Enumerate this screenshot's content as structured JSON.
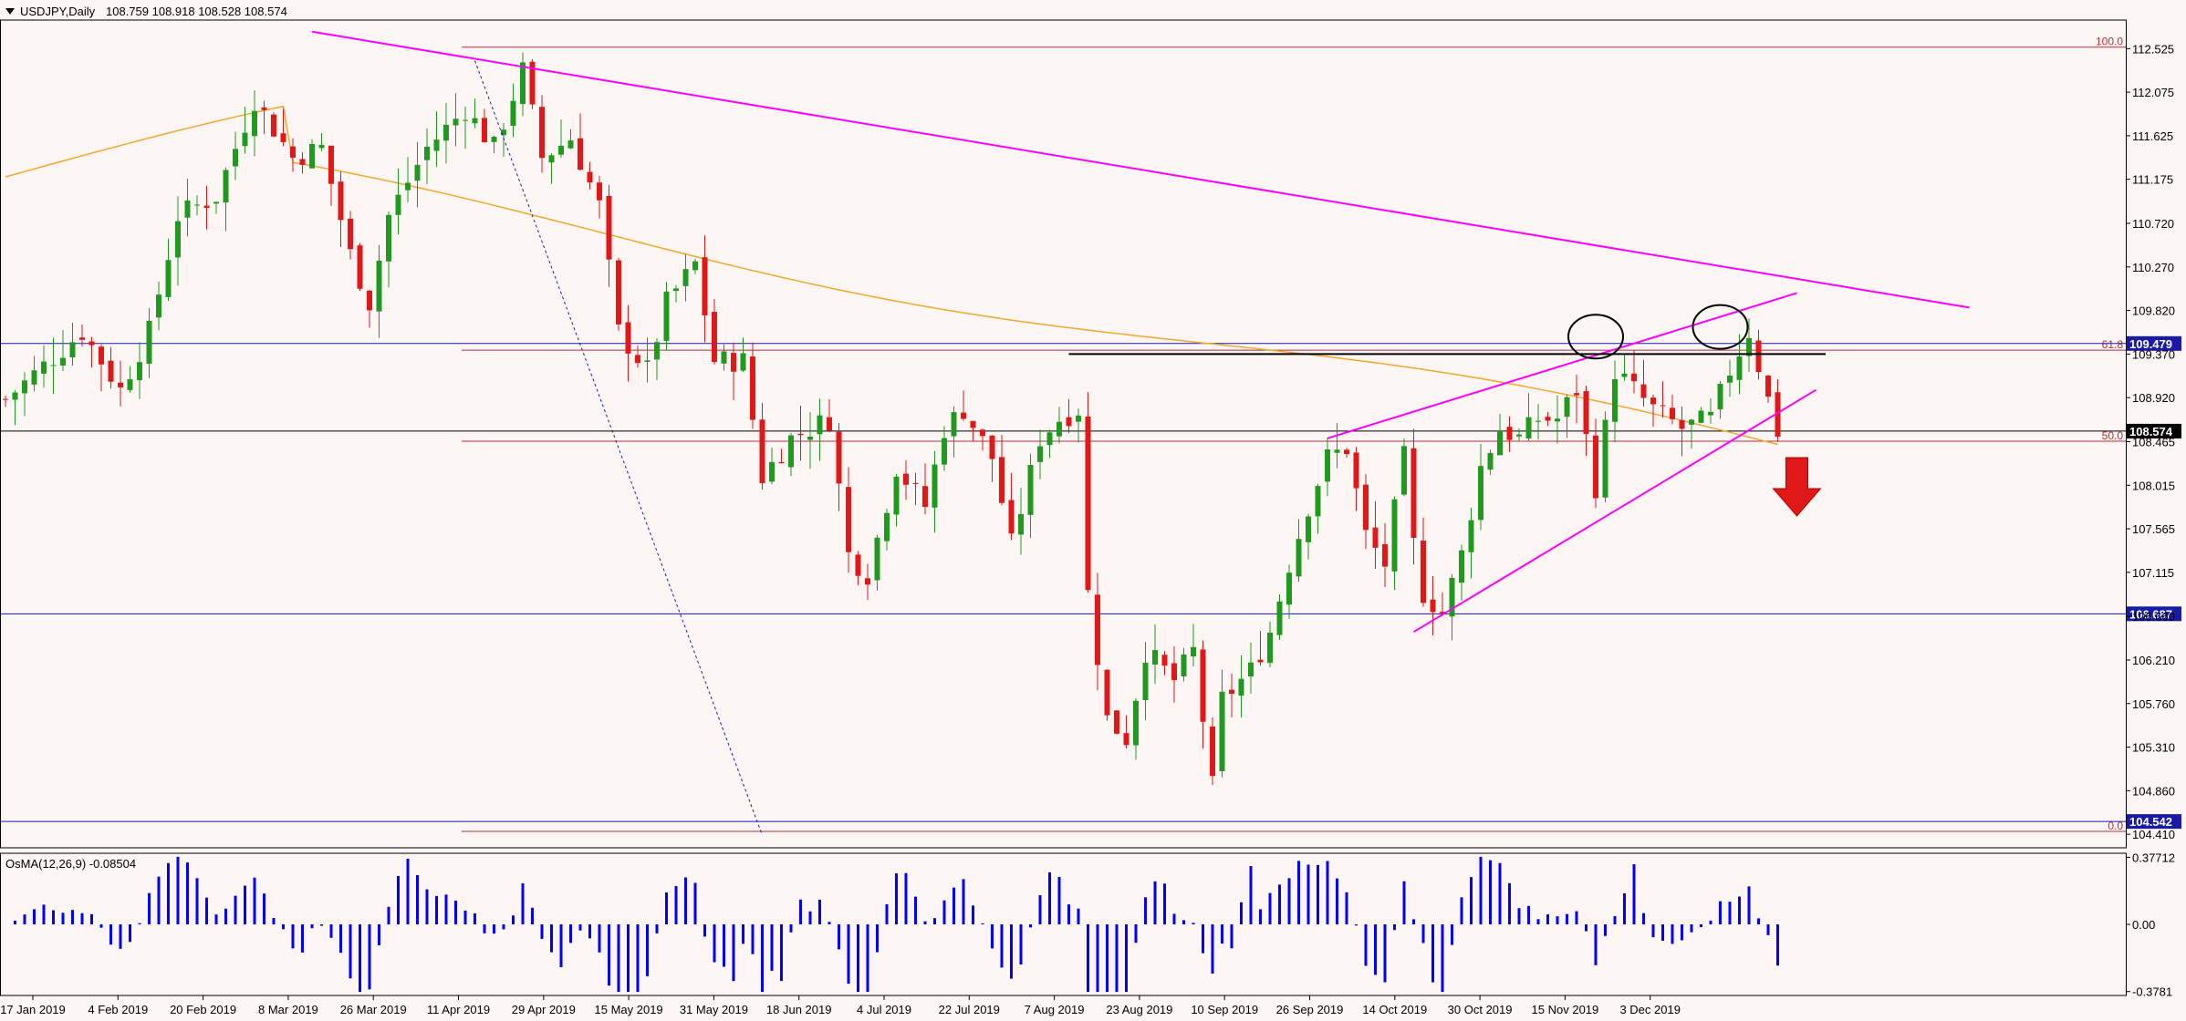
{
  "header": {
    "symbol": "USDJPY,Daily",
    "ohlc": "108.759 108.918 108.528 108.574"
  },
  "chart_data": {
    "type": "candlestick",
    "symbol": "USDJPY",
    "timeframe": "Daily",
    "price_axis": {
      "ticks": [
        "112.525",
        "112.075",
        "111.625",
        "111.175",
        "110.720",
        "110.270",
        "109.820",
        "109.370",
        "108.920",
        "108.465",
        "108.015",
        "107.565",
        "107.115",
        "106.660",
        "106.210",
        "105.760",
        "105.310",
        "104.860",
        "104.410"
      ],
      "range": [
        104.27,
        112.82
      ]
    },
    "time_axis": {
      "ticks": [
        "17 Jan 2019",
        "4 Feb 2019",
        "20 Feb 2019",
        "8 Mar 2019",
        "26 Mar 2019",
        "11 Apr 2019",
        "29 Apr 2019",
        "15 May 2019",
        "31 May 2019",
        "18 Jun 2019",
        "4 Jul 2019",
        "22 Jul 2019",
        "7 Aug 2019",
        "23 Aug 2019",
        "10 Sep 2019",
        "26 Sep 2019",
        "14 Oct 2019",
        "30 Oct 2019",
        "15 Nov 2019",
        "3 Dec 2019"
      ]
    },
    "price_tags": [
      {
        "label": "109.479",
        "value": 109.479,
        "color": "#1a1aa8"
      },
      {
        "label": "108.574",
        "value": 108.574,
        "color": "#000000"
      },
      {
        "label": "106.687",
        "value": 106.687,
        "color": "#1a1aa8"
      },
      {
        "label": "104.542",
        "value": 104.542,
        "color": "#1a1aa8"
      }
    ],
    "fibonacci_levels": [
      {
        "label": "100.0",
        "value": 112.54
      },
      {
        "label": "61.8",
        "value": 109.41
      },
      {
        "label": "50.0",
        "value": 108.47
      },
      {
        "label": "0.0",
        "value": 104.44
      }
    ],
    "moving_average_color": "#f0a830",
    "bull_color": "#1f9a1f",
    "bear_color": "#e01818",
    "trendline_color": "#ff00ff",
    "signal": "bearish-arrow",
    "oscillator": {
      "label": "OsMA(12,26,9) -0.08504",
      "ticks": [
        "0.37712",
        "0.00",
        "-0.3781"
      ],
      "range": [
        -0.4,
        0.4
      ],
      "color": "#0000ff"
    }
  }
}
